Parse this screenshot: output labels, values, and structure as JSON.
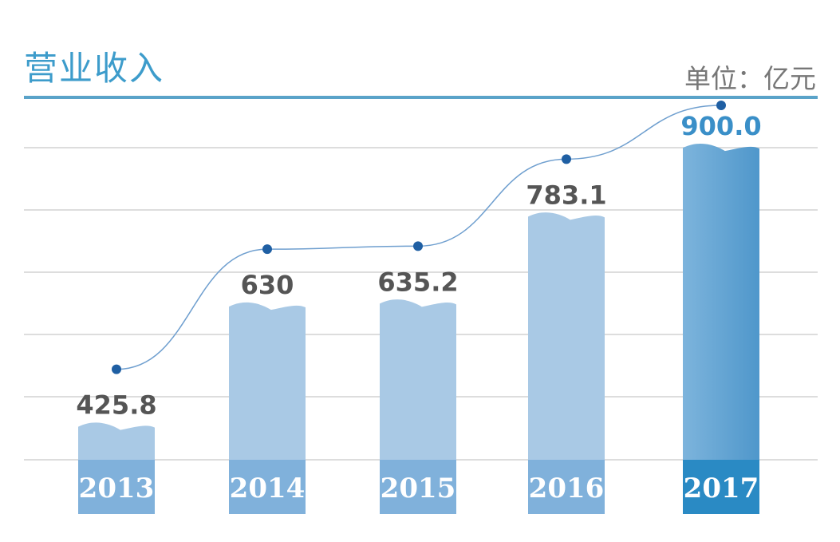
{
  "chart_data": {
    "type": "bar",
    "title": "营业收入",
    "unit_label": "单位：亿元",
    "categories": [
      "2013",
      "2014",
      "2015",
      "2016",
      "2017"
    ],
    "values": [
      425.8,
      630,
      635.2,
      783.1,
      900.0
    ],
    "value_labels": [
      "425.8",
      "630",
      "635.2",
      "783.1",
      "900.0"
    ],
    "trend_line": true,
    "grid": true,
    "highlight_category": "2017",
    "colors": {
      "title": "#3d9ccb",
      "bar": "#a9c9e5",
      "bar_label_box": "#80b1db",
      "highlight_bar": "#5a9fd0",
      "highlight_label_box": "#2a8ac4",
      "highlight_value": "#3a8fc8",
      "value_text": "#555555",
      "trend_line": "#6f9fcf",
      "trend_dot": "#1f5fa3",
      "grid": "#dddddd"
    }
  }
}
